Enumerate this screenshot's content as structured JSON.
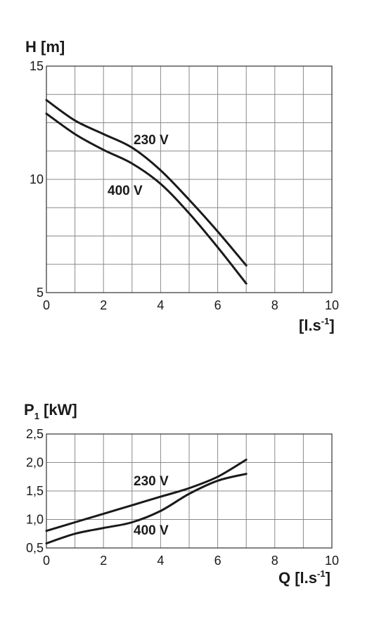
{
  "chart_data": [
    {
      "type": "line",
      "title": "H [m]",
      "xlabel_main": "[l.s",
      "xlabel_sup": "-1",
      "xlabel_end": "]",
      "xlim": [
        0,
        10
      ],
      "ylim": [
        5,
        15
      ],
      "x_ticks": [
        "0",
        "2",
        "4",
        "6",
        "8",
        "10"
      ],
      "y_ticks": [
        "5",
        "10",
        "15"
      ],
      "grid": true,
      "series": [
        {
          "name": "230 V",
          "x": [
            0,
            1,
            2,
            3,
            4,
            5,
            6,
            7
          ],
          "y": [
            13.5,
            12.6,
            12.0,
            11.4,
            10.4,
            9.1,
            7.7,
            6.2
          ]
        },
        {
          "name": "400 V",
          "x": [
            0,
            1,
            2,
            3,
            4,
            5,
            6,
            7
          ],
          "y": [
            12.9,
            12.0,
            11.3,
            10.7,
            9.8,
            8.5,
            7.0,
            5.4
          ]
        }
      ]
    },
    {
      "type": "line",
      "title_main": "P",
      "title_sub": "1",
      "title_end": " [kW]",
      "xlabel_main": "Q [l.s",
      "xlabel_sup": "-1",
      "xlabel_end": "]",
      "xlim": [
        0,
        10
      ],
      "ylim": [
        0.5,
        2.5
      ],
      "x_ticks": [
        "0",
        "2",
        "4",
        "6",
        "8",
        "10"
      ],
      "y_ticks": [
        "0,5",
        "1,0",
        "1,5",
        "2,0",
        "2,5"
      ],
      "grid": true,
      "series": [
        {
          "name": "230 V",
          "x": [
            0,
            1,
            2,
            3,
            4,
            5,
            6,
            7
          ],
          "y": [
            0.8,
            0.95,
            1.1,
            1.25,
            1.4,
            1.55,
            1.75,
            2.05
          ]
        },
        {
          "name": "400 V",
          "x": [
            0,
            1,
            2,
            3,
            4,
            5,
            6,
            7
          ],
          "y": [
            0.58,
            0.75,
            0.85,
            0.95,
            1.15,
            1.45,
            1.68,
            1.8
          ]
        }
      ]
    }
  ]
}
